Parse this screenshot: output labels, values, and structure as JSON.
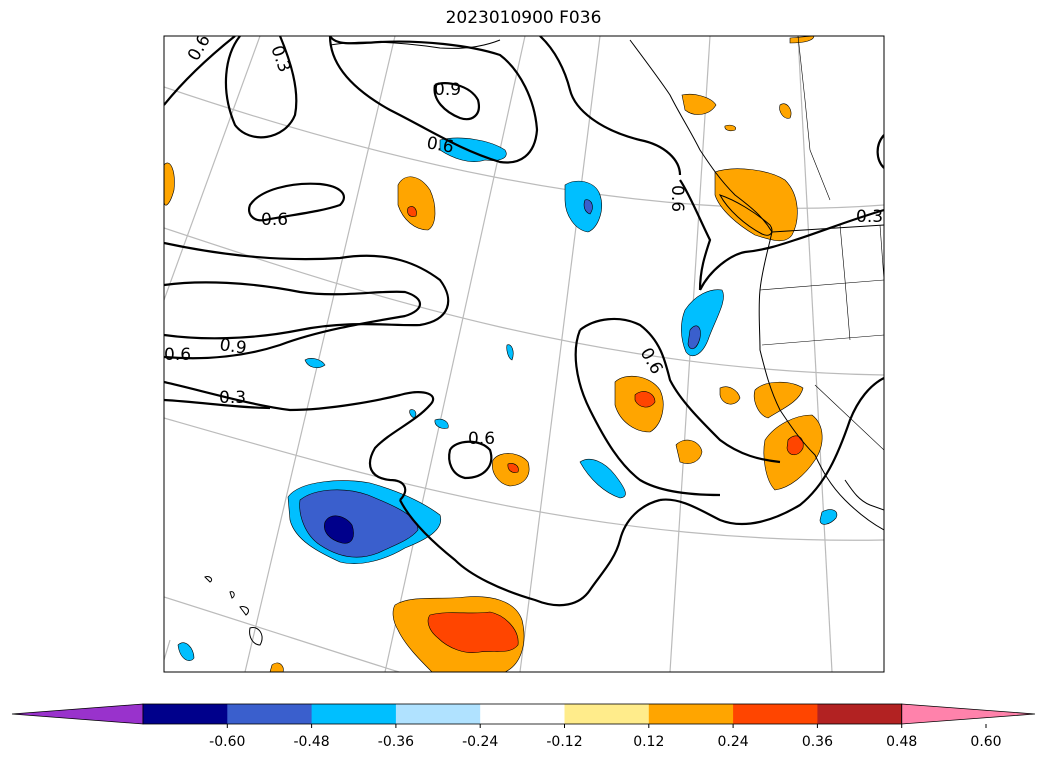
{
  "title": "2023010900 F036",
  "colorbar": {
    "ticks": [
      "-0.60",
      "-0.48",
      "-0.36",
      "-0.24",
      "-0.12",
      "0.12",
      "0.24",
      "0.36",
      "0.48",
      "0.60"
    ],
    "colors": [
      "#9932cc",
      "#00008b",
      "#3a5fcd",
      "#00bfff",
      "#b0e2ff",
      "#ffffff",
      "#ffec8b",
      "#ffa500",
      "#ff4500",
      "#b22222",
      "#ff82ab"
    ]
  },
  "contour_labels": [
    "0.6",
    "0.3",
    "0.9",
    "0.6",
    "0.6",
    "0.9",
    "0.6",
    "0.3",
    "0.6",
    "0.6",
    "0.6",
    "0.3"
  ]
}
